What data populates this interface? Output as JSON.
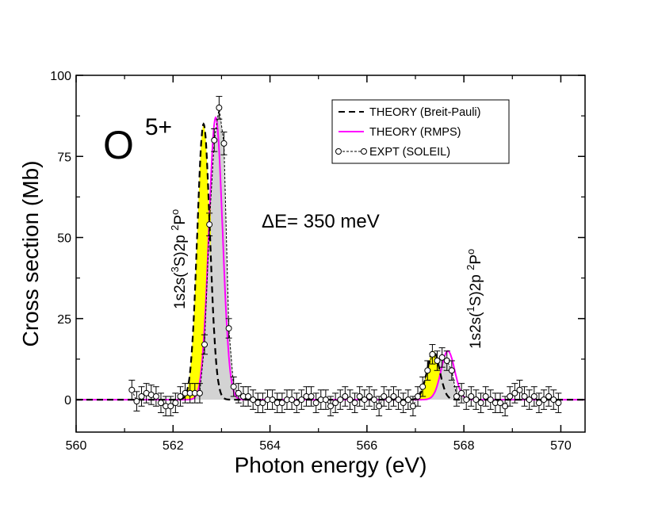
{
  "chart_data": {
    "type": "line",
    "title": "O",
    "title_superscript": "5+",
    "xlabel": "Photon energy (eV)",
    "ylabel": "Cross section (Mb)",
    "xlim": [
      560,
      570.5
    ],
    "ylim": [
      -10,
      100
    ],
    "xticks": [
      560,
      562,
      564,
      566,
      568,
      570
    ],
    "yticks": [
      0,
      25,
      50,
      75,
      100
    ],
    "annotation_energy": "ΔE= 350 meV",
    "resonance_labels": [
      {
        "id": "res1",
        "pre": "1s2s(",
        "sup1": "3",
        "mid": "S)2p ",
        "sup2": "2",
        "post": "P",
        "sup3": "o"
      },
      {
        "id": "res2",
        "pre": "1s2s(",
        "sup1": "1",
        "mid": "S)2p ",
        "sup2": "2",
        "post": "P",
        "sup3": "o"
      }
    ],
    "legend": [
      {
        "label": "THEORY (Breit-Pauli)",
        "style": "dashed",
        "color": "#000000"
      },
      {
        "label": "THEORY (RMPS)",
        "style": "solid",
        "color": "#ff00ff"
      },
      {
        "label": "EXPT (SOLEIL)",
        "style": "dashed-circle",
        "color": "#000000"
      }
    ],
    "series": [
      {
        "name": "THEORY (Breit-Pauli)",
        "peaks": [
          {
            "center": 562.63,
            "height": 85,
            "sigma": 0.13
          },
          {
            "center": 567.37,
            "height": 15,
            "sigma": 0.13
          }
        ]
      },
      {
        "name": "THEORY (RMPS)",
        "peaks": [
          {
            "center": 562.88,
            "height": 87,
            "sigma": 0.14
          },
          {
            "center": 567.67,
            "height": 15,
            "sigma": 0.14
          }
        ]
      },
      {
        "name": "EXPT (SOLEIL)",
        "x": [
          561.15,
          561.25,
          561.35,
          561.45,
          561.55,
          561.65,
          561.75,
          561.85,
          561.95,
          562.05,
          562.15,
          562.25,
          562.35,
          562.45,
          562.55,
          562.65,
          562.75,
          562.85,
          562.95,
          563.05,
          563.15,
          563.25,
          563.35,
          563.45,
          563.55,
          563.65,
          563.75,
          563.85,
          563.95,
          564.05,
          564.15,
          564.25,
          564.35,
          564.45,
          564.55,
          564.65,
          564.75,
          564.85,
          564.95,
          565.05,
          565.15,
          565.25,
          565.35,
          565.45,
          565.55,
          565.65,
          565.75,
          565.85,
          565.95,
          566.05,
          566.15,
          566.25,
          566.35,
          566.45,
          566.55,
          566.65,
          566.75,
          566.85,
          566.95,
          567.05,
          567.15,
          567.25,
          567.35,
          567.45,
          567.55,
          567.65,
          567.75,
          567.85,
          567.95,
          568.05,
          568.15,
          568.25,
          568.35,
          568.45,
          568.55,
          568.65,
          568.75,
          568.85,
          568.95,
          569.05,
          569.15,
          569.25,
          569.35,
          569.45,
          569.55,
          569.65,
          569.75,
          569.85,
          569.95
        ],
        "y": [
          3,
          -0.5,
          1,
          2,
          1.5,
          1,
          -1,
          -2,
          -2,
          -1,
          1,
          2,
          2,
          2,
          2,
          17,
          54,
          80,
          90,
          79,
          22,
          4,
          2,
          1,
          1,
          0,
          -1,
          -1,
          0,
          0,
          -1,
          -1,
          0,
          0,
          -1,
          0,
          1,
          1,
          -1,
          0,
          0,
          -2,
          -1,
          0,
          1,
          0,
          -1,
          1,
          0,
          1,
          0,
          -2,
          1,
          0,
          1,
          0,
          -1,
          0,
          -2,
          1,
          4,
          9,
          14,
          12,
          13,
          12,
          9,
          1,
          2,
          0,
          1,
          0,
          -1,
          1,
          0,
          -1,
          -1,
          -2,
          1,
          2,
          3,
          1,
          0,
          1,
          -1,
          0,
          1,
          0,
          -1
        ]
      }
    ]
  }
}
